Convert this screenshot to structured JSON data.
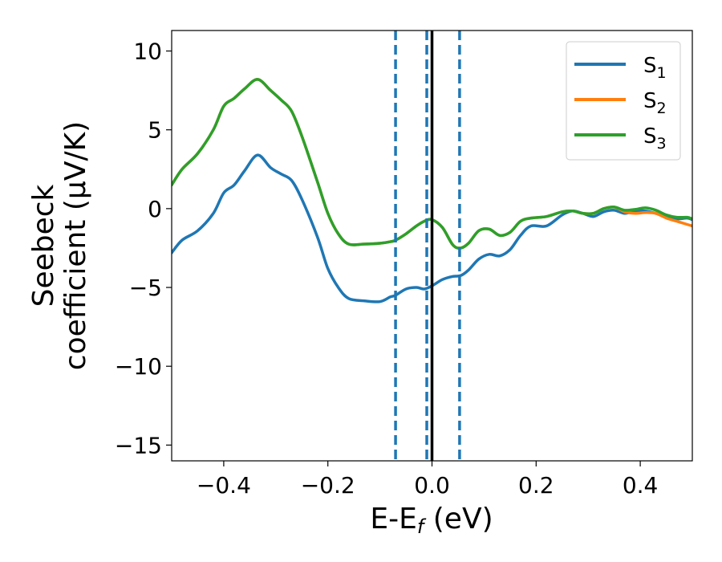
{
  "chart_data": {
    "type": "line",
    "xlabel": {
      "main": "E-E",
      "sub": "f",
      "unit": " (eV)"
    },
    "ylabel": {
      "line1": "Seebeck",
      "line2": "coefficient  (μV/K)"
    },
    "xlim": [
      -0.5,
      0.5
    ],
    "ylim": [
      -16,
      11.3
    ],
    "x_ticks": [
      -0.4,
      -0.2,
      0.0,
      0.2,
      0.4
    ],
    "x_tick_labels": [
      "−0.4",
      "−0.2",
      "0.0",
      "0.2",
      "0.4"
    ],
    "y_ticks": [
      10,
      5,
      0,
      -5,
      -10,
      -15
    ],
    "y_tick_labels": [
      "10",
      "5",
      "0",
      "−5",
      "−10",
      "−15"
    ],
    "grid": false,
    "legend_position": "top-right",
    "fermi_line": {
      "x": 0.0,
      "color": "#000000",
      "style": "solid"
    },
    "dashed_lines": {
      "x": [
        -0.07,
        -0.01,
        0.053
      ],
      "color": "#1f77b4",
      "style": "dashed"
    },
    "legend": [
      {
        "base": "S",
        "sub": "1",
        "color": "#1f77b4"
      },
      {
        "base": "S",
        "sub": "2",
        "color": "#ff7f0e"
      },
      {
        "base": "S",
        "sub": "3",
        "color": "#2ca02c"
      }
    ],
    "series": [
      {
        "name": "S1",
        "color": "#1f77b4",
        "points": [
          [
            -0.5,
            -2.8
          ],
          [
            -0.48,
            -2.0
          ],
          [
            -0.45,
            -1.4
          ],
          [
            -0.42,
            -0.3
          ],
          [
            -0.4,
            1.0
          ],
          [
            -0.38,
            1.5
          ],
          [
            -0.36,
            2.4
          ],
          [
            -0.335,
            3.4
          ],
          [
            -0.31,
            2.6
          ],
          [
            -0.29,
            2.2
          ],
          [
            -0.27,
            1.8
          ],
          [
            -0.25,
            0.6
          ],
          [
            -0.22,
            -1.8
          ],
          [
            -0.2,
            -3.8
          ],
          [
            -0.18,
            -5.0
          ],
          [
            -0.16,
            -5.7
          ],
          [
            -0.13,
            -5.85
          ],
          [
            -0.1,
            -5.9
          ],
          [
            -0.08,
            -5.6
          ],
          [
            -0.07,
            -5.5
          ],
          [
            -0.05,
            -5.1
          ],
          [
            -0.03,
            -5.0
          ],
          [
            -0.015,
            -5.1
          ],
          [
            0.0,
            -4.9
          ],
          [
            0.02,
            -4.5
          ],
          [
            0.04,
            -4.3
          ],
          [
            0.055,
            -4.25
          ],
          [
            0.07,
            -3.9
          ],
          [
            0.09,
            -3.2
          ],
          [
            0.11,
            -2.9
          ],
          [
            0.13,
            -3.0
          ],
          [
            0.15,
            -2.6
          ],
          [
            0.17,
            -1.7
          ],
          [
            0.19,
            -1.1
          ],
          [
            0.22,
            -1.1
          ],
          [
            0.25,
            -0.4
          ],
          [
            0.27,
            -0.15
          ],
          [
            0.29,
            -0.3
          ],
          [
            0.31,
            -0.5
          ],
          [
            0.33,
            -0.2
          ],
          [
            0.35,
            -0.1
          ],
          [
            0.37,
            -0.3
          ],
          [
            0.39,
            -0.15
          ],
          [
            0.41,
            -0.15
          ],
          [
            0.43,
            -0.3
          ],
          [
            0.45,
            -0.5
          ],
          [
            0.47,
            -0.65
          ],
          [
            0.49,
            -0.6
          ],
          [
            0.5,
            -0.7
          ]
        ]
      },
      {
        "name": "S2",
        "color": "#ff7f0e",
        "points": [
          [
            -0.5,
            1.5
          ],
          [
            -0.48,
            2.5
          ],
          [
            -0.45,
            3.5
          ],
          [
            -0.42,
            5.0
          ],
          [
            -0.4,
            6.5
          ],
          [
            -0.38,
            7.0
          ],
          [
            -0.36,
            7.6
          ],
          [
            -0.335,
            8.2
          ],
          [
            -0.31,
            7.5
          ],
          [
            -0.29,
            6.9
          ],
          [
            -0.27,
            6.2
          ],
          [
            -0.25,
            4.6
          ],
          [
            -0.22,
            1.7
          ],
          [
            -0.2,
            -0.3
          ],
          [
            -0.18,
            -1.6
          ],
          [
            -0.16,
            -2.25
          ],
          [
            -0.13,
            -2.25
          ],
          [
            -0.1,
            -2.2
          ],
          [
            -0.08,
            -2.1
          ],
          [
            -0.07,
            -2.0
          ],
          [
            -0.05,
            -1.6
          ],
          [
            -0.03,
            -1.1
          ],
          [
            -0.015,
            -0.8
          ],
          [
            0.0,
            -0.7
          ],
          [
            0.02,
            -1.2
          ],
          [
            0.04,
            -2.3
          ],
          [
            0.055,
            -2.5
          ],
          [
            0.07,
            -2.2
          ],
          [
            0.09,
            -1.4
          ],
          [
            0.11,
            -1.3
          ],
          [
            0.13,
            -1.7
          ],
          [
            0.15,
            -1.5
          ],
          [
            0.17,
            -0.8
          ],
          [
            0.19,
            -0.6
          ],
          [
            0.22,
            -0.5
          ],
          [
            0.25,
            -0.2
          ],
          [
            0.27,
            -0.15
          ],
          [
            0.29,
            -0.3
          ],
          [
            0.31,
            -0.3
          ],
          [
            0.33,
            0.0
          ],
          [
            0.35,
            0.1
          ],
          [
            0.37,
            -0.2
          ],
          [
            0.39,
            -0.3
          ],
          [
            0.41,
            -0.25
          ],
          [
            0.43,
            -0.3
          ],
          [
            0.45,
            -0.6
          ],
          [
            0.47,
            -0.8
          ],
          [
            0.49,
            -1.0
          ],
          [
            0.5,
            -1.1
          ]
        ]
      },
      {
        "name": "S3",
        "color": "#2ca02c",
        "points": [
          [
            -0.5,
            1.5
          ],
          [
            -0.48,
            2.5
          ],
          [
            -0.45,
            3.5
          ],
          [
            -0.42,
            5.0
          ],
          [
            -0.4,
            6.5
          ],
          [
            -0.38,
            7.0
          ],
          [
            -0.36,
            7.6
          ],
          [
            -0.335,
            8.2
          ],
          [
            -0.31,
            7.5
          ],
          [
            -0.29,
            6.9
          ],
          [
            -0.27,
            6.2
          ],
          [
            -0.25,
            4.6
          ],
          [
            -0.22,
            1.7
          ],
          [
            -0.2,
            -0.3
          ],
          [
            -0.18,
            -1.6
          ],
          [
            -0.16,
            -2.25
          ],
          [
            -0.13,
            -2.25
          ],
          [
            -0.1,
            -2.2
          ],
          [
            -0.08,
            -2.1
          ],
          [
            -0.07,
            -2.0
          ],
          [
            -0.05,
            -1.6
          ],
          [
            -0.03,
            -1.1
          ],
          [
            -0.015,
            -0.8
          ],
          [
            0.0,
            -0.7
          ],
          [
            0.02,
            -1.2
          ],
          [
            0.04,
            -2.3
          ],
          [
            0.055,
            -2.5
          ],
          [
            0.07,
            -2.2
          ],
          [
            0.09,
            -1.4
          ],
          [
            0.11,
            -1.3
          ],
          [
            0.13,
            -1.7
          ],
          [
            0.15,
            -1.5
          ],
          [
            0.17,
            -0.8
          ],
          [
            0.19,
            -0.6
          ],
          [
            0.22,
            -0.5
          ],
          [
            0.25,
            -0.2
          ],
          [
            0.27,
            -0.15
          ],
          [
            0.29,
            -0.3
          ],
          [
            0.31,
            -0.3
          ],
          [
            0.33,
            0.0
          ],
          [
            0.35,
            0.1
          ],
          [
            0.37,
            -0.1
          ],
          [
            0.39,
            -0.05
          ],
          [
            0.41,
            0.05
          ],
          [
            0.43,
            -0.1
          ],
          [
            0.45,
            -0.4
          ],
          [
            0.47,
            -0.55
          ],
          [
            0.49,
            -0.55
          ],
          [
            0.5,
            -0.65
          ]
        ]
      }
    ]
  }
}
